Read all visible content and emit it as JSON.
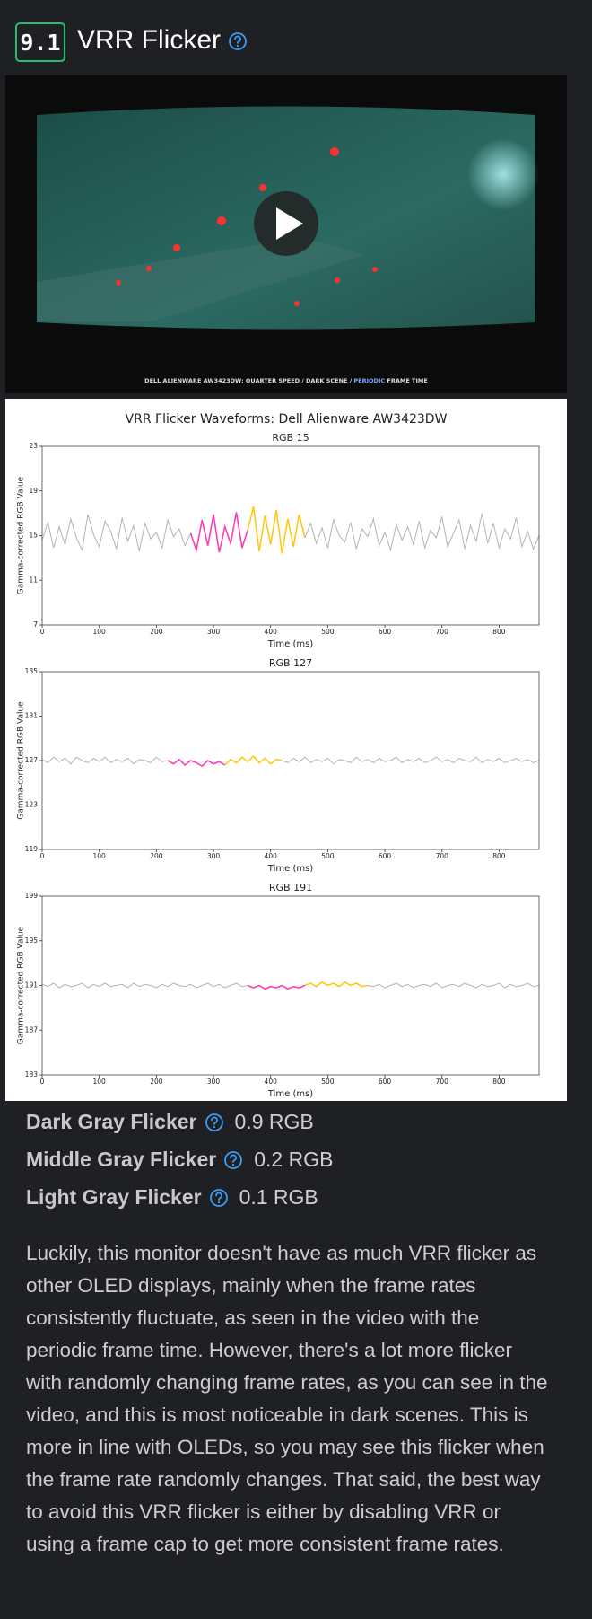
{
  "header": {
    "score": "9.1",
    "title": "VRR Flicker"
  },
  "video": {
    "caption_parts": [
      "DELL ALIENWARE AW3423DW: QUARTER SPEED / DARK SCENE / ",
      "PERIODIC",
      " FRAME TIME"
    ]
  },
  "figure": {
    "title": "VRR Flicker Waveforms: Dell Alienware AW3423DW",
    "ylabel": "Gamma-corrected RGB Value",
    "plots": [
      {
        "title": "RGB 15",
        "xlabel": "Time (ms)",
        "xlim": [
          0,
          870
        ],
        "xticks": [
          0,
          100,
          200,
          300,
          400,
          500,
          600,
          700,
          800
        ],
        "ylim": [
          7,
          23
        ],
        "yticks": [
          7,
          11,
          15,
          19,
          23
        ],
        "series": [
          {
            "color": "#b3b3b3",
            "x": [
              0,
              10,
              20,
              30,
              40,
              50,
              60,
              70,
              80,
              90,
              100,
              110,
              120,
              130,
              140,
              150,
              160,
              170,
              180,
              190,
              200,
              210,
              220,
              230,
              240,
              250,
              260
            ],
            "values": [
              14.6,
              16.2,
              13.9,
              15.8,
              14.2,
              16.5,
              14.8,
              13.7,
              16.9,
              15.1,
              14.0,
              16.3,
              15.4,
              13.8,
              16.6,
              14.5,
              15.9,
              13.6,
              16.1,
              14.7,
              15.3,
              13.9,
              16.4,
              14.9,
              15.6,
              14.1,
              15.2
            ]
          },
          {
            "color": "#ff3fb4",
            "x": [
              260,
              270,
              280,
              290,
              300,
              310,
              320,
              330,
              340,
              350,
              360
            ],
            "values": [
              15.2,
              13.7,
              16.4,
              14.1,
              16.9,
              13.5,
              15.8,
              14.3,
              17.1,
              13.9,
              15.5
            ]
          },
          {
            "color": "#ffc91a",
            "x": [
              360,
              370,
              380,
              390,
              400,
              410,
              420,
              430,
              440,
              450,
              460
            ],
            "values": [
              15.5,
              17.6,
              13.6,
              16.8,
              14.2,
              17.3,
              13.4,
              16.5,
              14.0,
              16.9,
              14.8
            ]
          },
          {
            "color": "#b3b3b3",
            "x": [
              460,
              470,
              480,
              490,
              500,
              510,
              520,
              530,
              540,
              550,
              560,
              570,
              580,
              590,
              600,
              610,
              620,
              630,
              640,
              650,
              660,
              670,
              680,
              690,
              700,
              710,
              720,
              730,
              740,
              750,
              760,
              770,
              780,
              790,
              800,
              810,
              820,
              830,
              840,
              850,
              860,
              870
            ],
            "values": [
              14.8,
              16.1,
              14.3,
              15.7,
              13.9,
              16.4,
              15.0,
              14.4,
              16.2,
              13.8,
              15.6,
              14.9,
              16.5,
              14.1,
              15.3,
              13.7,
              16.0,
              14.6,
              15.8,
              14.2,
              16.3,
              13.9,
              15.5,
              14.8,
              16.7,
              14.0,
              15.2,
              16.4,
              13.8,
              15.9,
              14.5,
              17.0,
              14.3,
              16.1,
              13.9,
              15.6,
              14.7,
              16.6,
              14.0,
              15.4,
              13.8,
              15.0
            ]
          }
        ]
      },
      {
        "title": "RGB 127",
        "xlabel": "Time (ms)",
        "xlim": [
          0,
          870
        ],
        "xticks": [
          0,
          100,
          200,
          300,
          400,
          500,
          600,
          700,
          800
        ],
        "ylim": [
          119,
          135
        ],
        "yticks": [
          119,
          123,
          127,
          131,
          135
        ],
        "series": [
          {
            "color": "#b3b3b3",
            "x": [
              0,
              10,
              20,
              30,
              40,
              50,
              60,
              70,
              80,
              90,
              100,
              110,
              120,
              130,
              140,
              150,
              160,
              170,
              180,
              190,
              200,
              210,
              220
            ],
            "values": [
              127.1,
              126.8,
              127.3,
              126.9,
              127.2,
              126.7,
              127.3,
              127.0,
              126.8,
              127.2,
              126.9,
              127.3,
              126.8,
              127.1,
              126.9,
              127.2,
              126.7,
              127.1,
              127.0,
              126.8,
              127.3,
              126.9,
              127.0
            ]
          },
          {
            "color": "#ff3fb4",
            "x": [
              220,
              230,
              240,
              250,
              260,
              270,
              280,
              290,
              300,
              310,
              320
            ],
            "values": [
              127.0,
              126.7,
              127.1,
              126.6,
              127.0,
              126.8,
              126.5,
              127.0,
              126.7,
              126.9,
              126.6
            ]
          },
          {
            "color": "#ffc91a",
            "x": [
              320,
              330,
              340,
              350,
              360,
              370,
              380,
              390,
              400,
              410,
              420
            ],
            "values": [
              126.6,
              127.1,
              126.8,
              127.3,
              126.9,
              127.4,
              126.8,
              127.2,
              126.7,
              127.1,
              127.0
            ]
          },
          {
            "color": "#b3b3b3",
            "x": [
              420,
              430,
              440,
              450,
              460,
              470,
              480,
              490,
              500,
              510,
              520,
              530,
              540,
              550,
              560,
              570,
              580,
              590,
              600,
              610,
              620,
              630,
              640,
              650,
              660,
              670,
              680,
              690,
              700,
              710,
              720,
              730,
              740,
              750,
              760,
              770,
              780,
              790,
              800,
              810,
              820,
              830,
              840,
              850,
              860,
              870
            ],
            "values": [
              127.0,
              126.8,
              127.2,
              126.9,
              127.3,
              126.8,
              127.1,
              126.9,
              127.2,
              126.7,
              127.1,
              127.0,
              126.8,
              127.3,
              126.9,
              127.1,
              126.8,
              127.2,
              126.9,
              127.0,
              127.3,
              126.8,
              127.1,
              126.9,
              127.2,
              126.8,
              127.0,
              127.3,
              126.9,
              127.1,
              126.8,
              127.2,
              127.0,
              126.9,
              127.3,
              126.8,
              127.1,
              126.9,
              127.2,
              126.8,
              127.0,
              127.2,
              126.9,
              127.1,
              126.8,
              127.0
            ]
          }
        ]
      },
      {
        "title": "RGB 191",
        "xlabel": "Time (ms)",
        "xlim": [
          0,
          870
        ],
        "xticks": [
          0,
          100,
          200,
          300,
          400,
          500,
          600,
          700,
          800
        ],
        "ylim": [
          183,
          199
        ],
        "yticks": [
          183,
          187,
          191,
          195,
          199
        ],
        "series": [
          {
            "color": "#b3b3b3",
            "x": [
              0,
              10,
              20,
              30,
              40,
              50,
              60,
              70,
              80,
              90,
              100,
              110,
              120,
              130,
              140,
              150,
              160,
              170,
              180,
              190,
              200,
              210,
              220,
              230,
              240,
              250,
              260,
              270,
              280,
              290,
              300,
              310,
              320,
              330,
              340,
              350,
              360
            ],
            "values": [
              191.1,
              190.9,
              191.2,
              190.8,
              191.1,
              190.9,
              191.0,
              191.2,
              190.8,
              191.1,
              190.9,
              191.2,
              190.9,
              191.0,
              191.1,
              190.8,
              191.2,
              190.9,
              191.1,
              191.0,
              190.8,
              191.1,
              190.9,
              191.2,
              191.0,
              190.9,
              191.1,
              190.8,
              191.0,
              191.2,
              190.9,
              191.1,
              190.8,
              191.0,
              191.2,
              190.9,
              191.0
            ]
          },
          {
            "color": "#ff3fb4",
            "x": [
              360,
              370,
              380,
              390,
              400,
              410,
              420,
              430,
              440,
              450,
              460
            ],
            "values": [
              191.0,
              190.8,
              191.0,
              190.7,
              190.9,
              190.8,
              191.0,
              190.7,
              190.9,
              190.8,
              191.0
            ]
          },
          {
            "color": "#ffc91a",
            "x": [
              460,
              470,
              480,
              490,
              500,
              510,
              520,
              530,
              540,
              550,
              560,
              570
            ],
            "values": [
              191.0,
              191.2,
              190.9,
              191.3,
              191.0,
              191.2,
              190.9,
              191.3,
              191.0,
              191.2,
              190.9,
              191.0
            ]
          },
          {
            "color": "#b3b3b3",
            "x": [
              570,
              580,
              590,
              600,
              610,
              620,
              630,
              640,
              650,
              660,
              670,
              680,
              690,
              700,
              710,
              720,
              730,
              740,
              750,
              760,
              770,
              780,
              790,
              800,
              810,
              820,
              830,
              840,
              850,
              860,
              870
            ],
            "values": [
              191.0,
              190.9,
              191.1,
              190.8,
              191.0,
              191.2,
              190.9,
              191.1,
              190.8,
              191.0,
              191.1,
              190.9,
              191.2,
              190.8,
              191.0,
              191.1,
              190.9,
              191.2,
              191.0,
              190.8,
              191.1,
              190.9,
              191.0,
              191.2,
              190.8,
              191.1,
              190.9,
              191.0,
              191.2,
              190.9,
              191.0
            ]
          }
        ]
      }
    ]
  },
  "metrics": [
    {
      "label": "Dark Gray Flicker",
      "value": "0.9 RGB"
    },
    {
      "label": "Middle Gray Flicker",
      "value": "0.2 RGB"
    },
    {
      "label": "Light Gray Flicker",
      "value": "0.1 RGB"
    }
  ],
  "paragraph": "Luckily, this monitor doesn't have as much VRR flicker as other OLED displays, mainly when the frame rates consistently fluctuate, as seen in the video with the periodic frame time. However, there's a lot more flicker with randomly changing frame rates, as you can see in the video, and this is most noticeable in dark scenes. This is more in line with OLEDs, so you may see this flicker when the frame rate randomly changes. That said, the best way to avoid this VRR flicker is either by disabling VRR or using a frame cap to get more consistent frame rates."
}
